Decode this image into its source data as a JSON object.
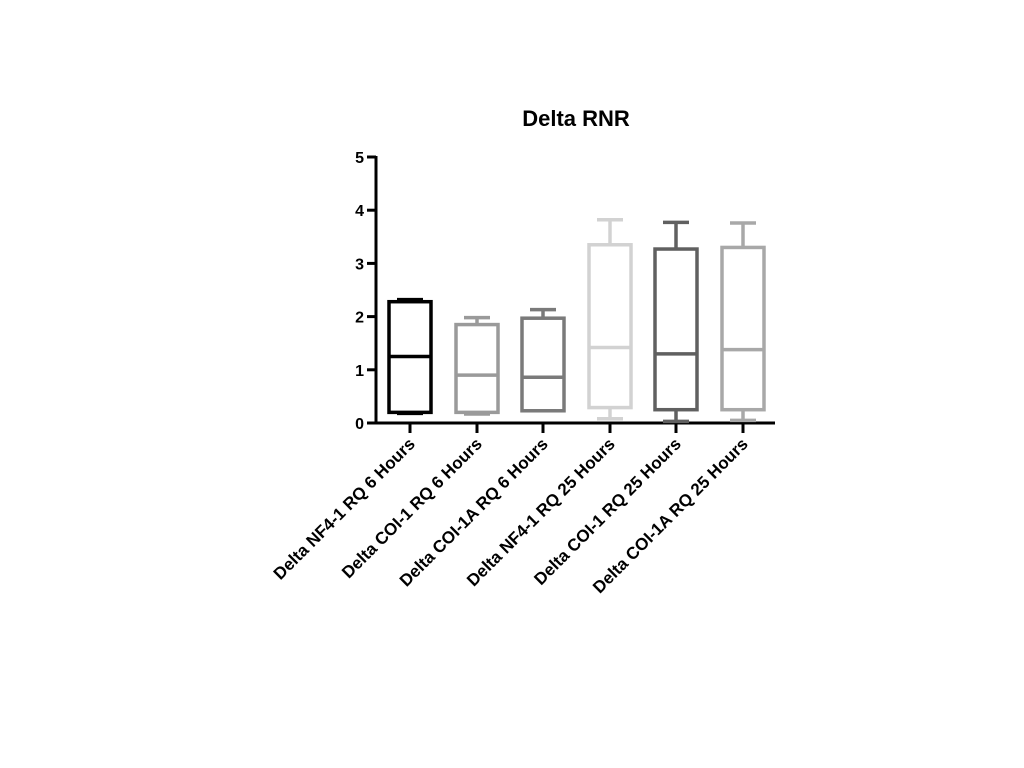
{
  "chart_data": {
    "type": "box",
    "title": "Delta RNR",
    "xlabel": "",
    "ylabel": "",
    "ylim": [
      0,
      5
    ],
    "yticks": [
      0,
      1,
      2,
      3,
      4,
      5
    ],
    "categories": [
      "Delta NF4-1 RQ 6 Hours",
      "Delta COI-1 RQ 6 Hours",
      "Delta COI-1A RQ 6 Hours",
      "Delta NF4-1 RQ 25 Hours",
      "Delta COI-1 RQ 25 Hours",
      "Delta COI-1A RQ 25 Hours"
    ],
    "boxes": [
      {
        "min": 0.18,
        "q1": 0.2,
        "median": 1.25,
        "q3": 2.28,
        "max": 2.32,
        "color": "#000000"
      },
      {
        "min": 0.17,
        "q1": 0.2,
        "median": 0.9,
        "q3": 1.85,
        "max": 1.98,
        "color": "#9a9a9a"
      },
      {
        "min": 0.23,
        "q1": 0.23,
        "median": 0.86,
        "q3": 1.97,
        "max": 2.13,
        "color": "#7a7a7a"
      },
      {
        "min": 0.08,
        "q1": 0.29,
        "median": 1.42,
        "q3": 3.35,
        "max": 3.82,
        "color": "#d2d2d2"
      },
      {
        "min": 0.03,
        "q1": 0.25,
        "median": 1.3,
        "q3": 3.27,
        "max": 3.77,
        "color": "#606060"
      },
      {
        "min": 0.05,
        "q1": 0.25,
        "median": 1.38,
        "q3": 3.3,
        "max": 3.76,
        "color": "#a8a8a8"
      }
    ]
  }
}
